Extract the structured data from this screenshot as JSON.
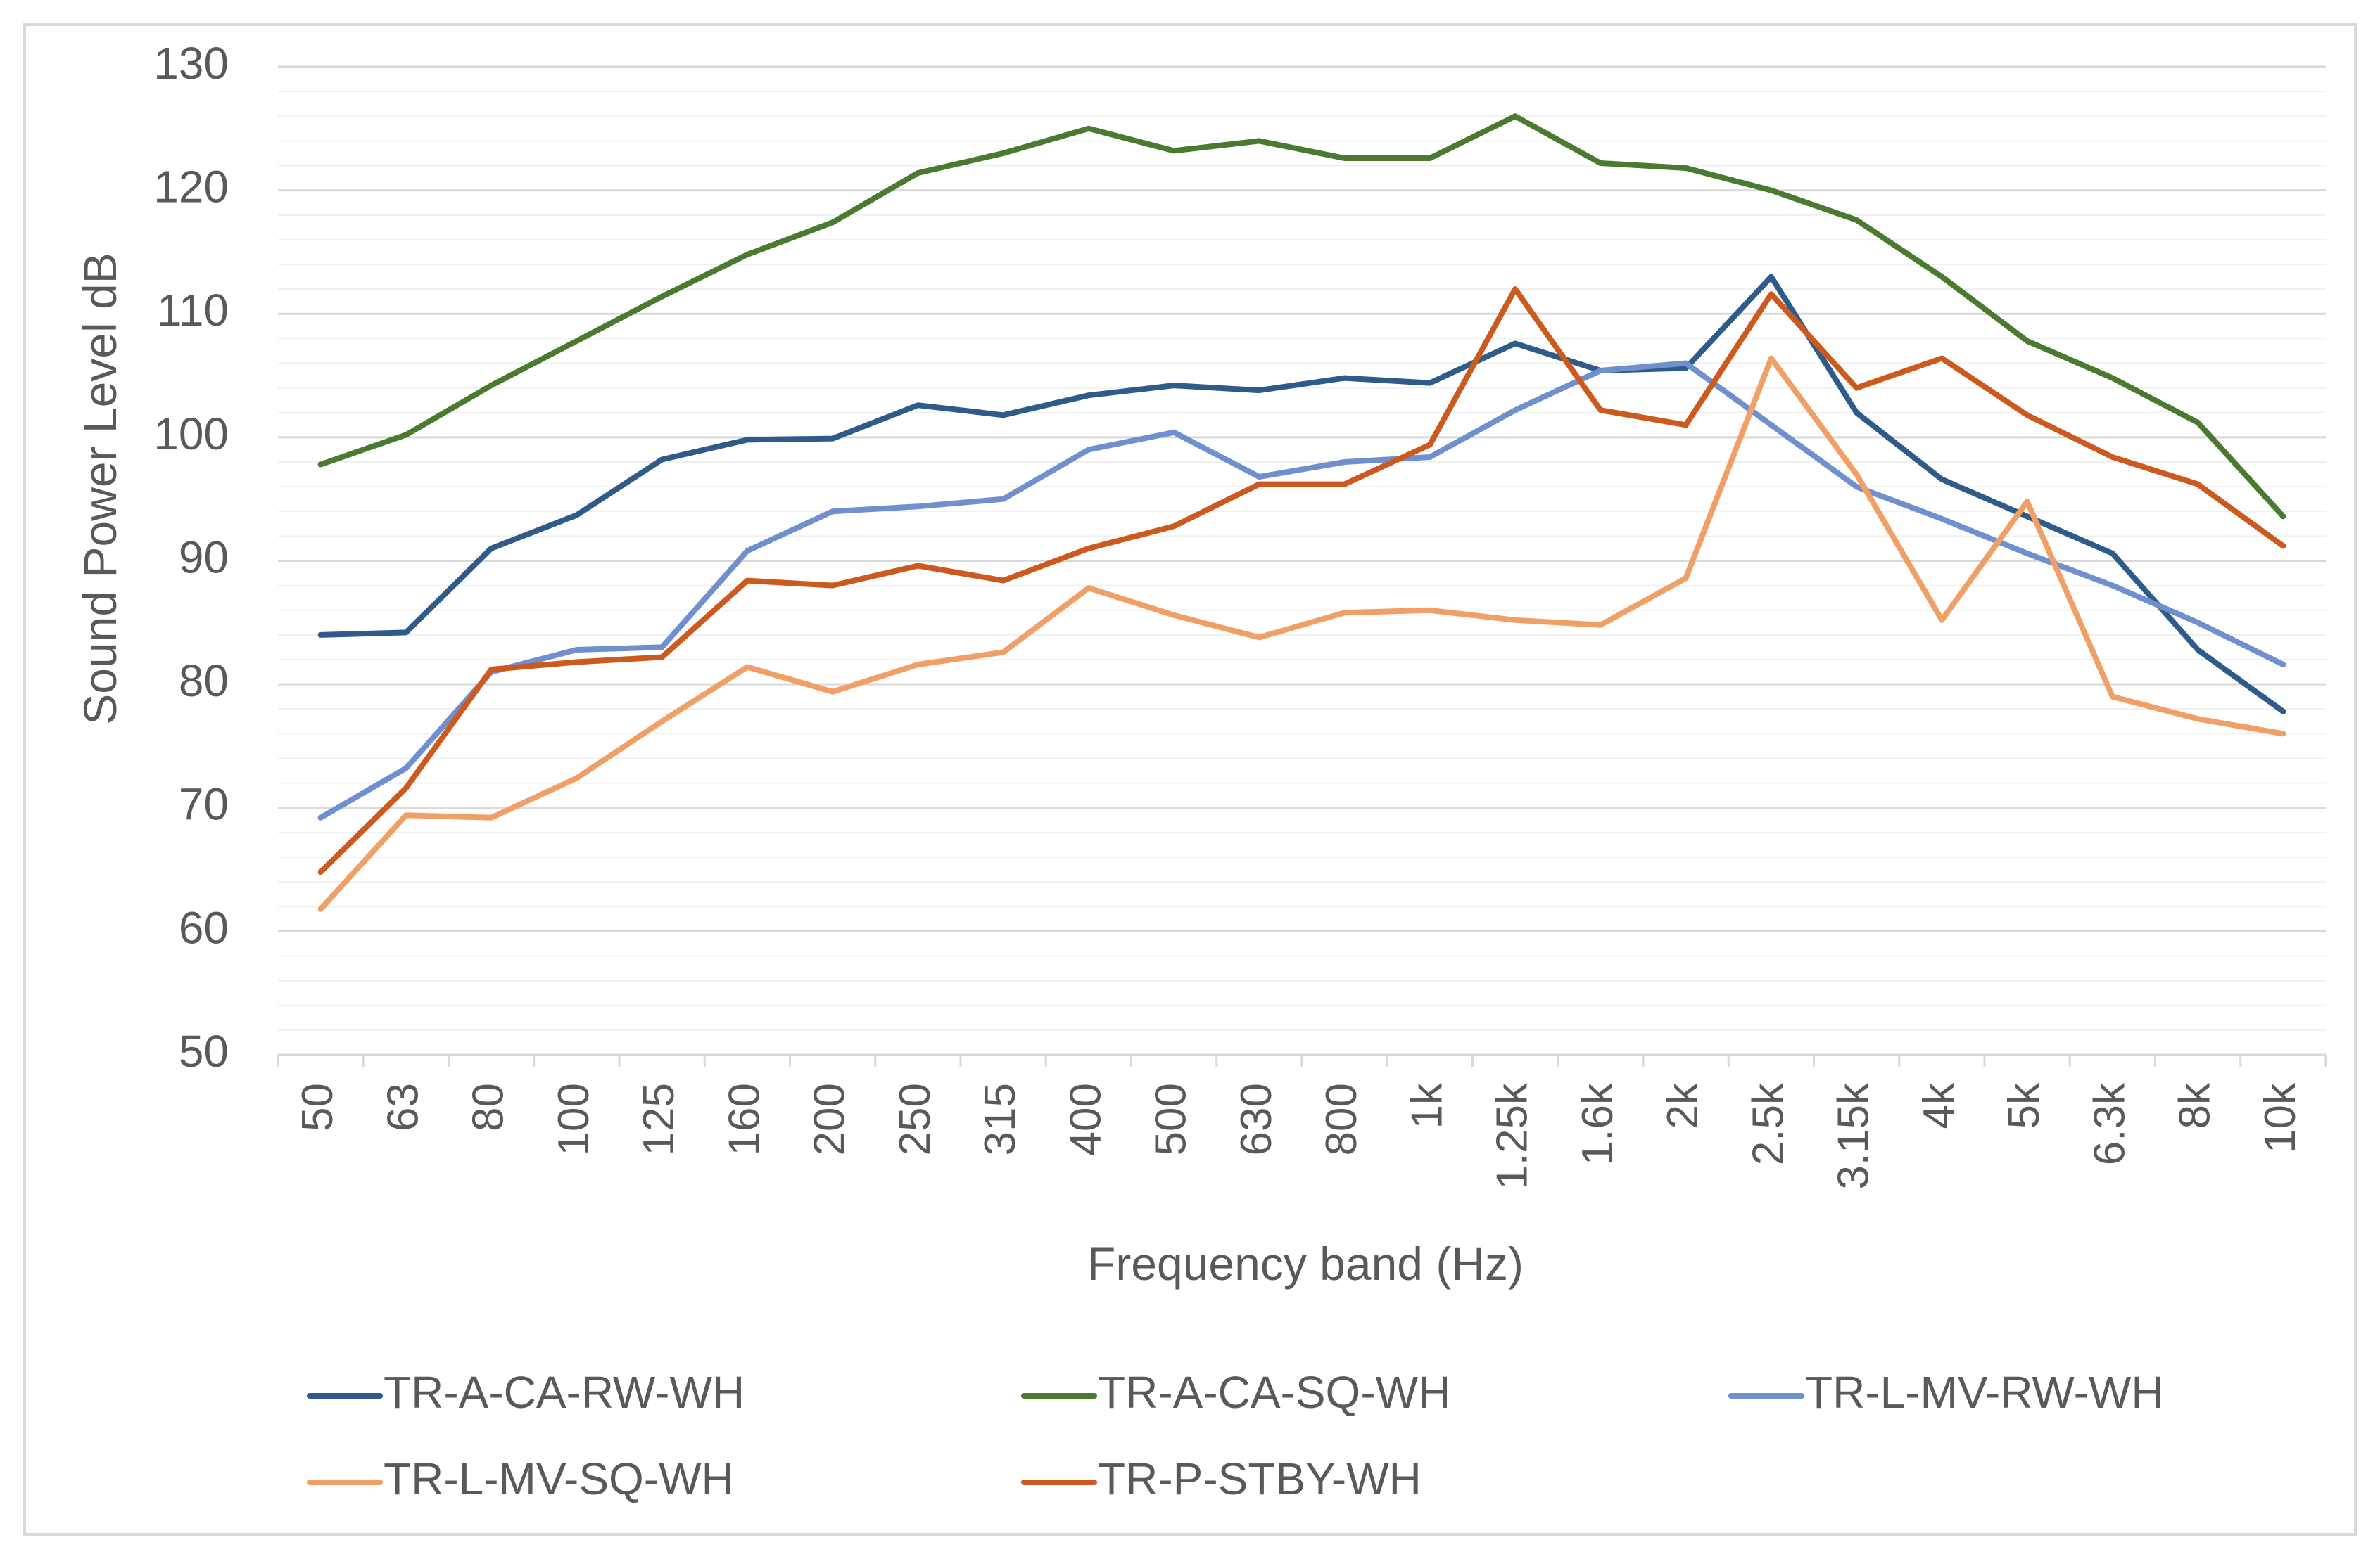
{
  "chart_data": {
    "type": "line",
    "title": "",
    "xlabel": "Frequency band (Hz)",
    "ylabel": "Sound Power Level dB",
    "ylim": [
      50,
      130
    ],
    "yticks": [
      50,
      60,
      70,
      80,
      90,
      100,
      110,
      120,
      130
    ],
    "grid": true,
    "legend_position": "bottom",
    "categories": [
      "50",
      "63",
      "80",
      "100",
      "125",
      "160",
      "200",
      "250",
      "315",
      "400",
      "500",
      "630",
      "800",
      "1k",
      "1.25k",
      "1.6k",
      "2k",
      "2.5k",
      "3.15k",
      "4k",
      "5k",
      "6.3k",
      "8k",
      "10k"
    ],
    "series": [
      {
        "name": "TR-A-CA-RW-WH",
        "color": "#2e5b8a",
        "values": [
          84,
          84.2,
          91,
          93.7,
          98.2,
          99.8,
          99.9,
          102.6,
          101.8,
          103.4,
          104.2,
          103.8,
          104.8,
          104.4,
          107.6,
          105.4,
          105.6,
          113,
          102,
          96.6,
          93.6,
          90.6,
          82.8,
          77.8
        ]
      },
      {
        "name": "TR-A-CA-SQ-WH",
        "color": "#4a7a2f",
        "values": [
          97.8,
          100.2,
          104.2,
          107.8,
          111.4,
          114.8,
          117.4,
          121.4,
          123,
          125,
          123.2,
          124,
          122.6,
          122.6,
          126,
          122.2,
          121.8,
          120,
          117.6,
          113,
          107.8,
          104.8,
          101.2,
          93.6
        ]
      },
      {
        "name": "TR-L-MV-RW-WH",
        "color": "#6f8fcf",
        "values": [
          69.2,
          73.2,
          81,
          82.8,
          83,
          90.8,
          94,
          94.4,
          95,
          99,
          100.4,
          96.8,
          98,
          98.4,
          102.2,
          105.4,
          106,
          101,
          96,
          93.4,
          90.6,
          88,
          85,
          81.6
        ]
      },
      {
        "name": "TR-L-MV-SQ-WH",
        "color": "#f0a066",
        "values": [
          61.8,
          69.4,
          69.2,
          72.4,
          77,
          81.4,
          79.4,
          81.6,
          82.6,
          87.8,
          85.6,
          83.8,
          85.8,
          86,
          85.2,
          84.8,
          88.6,
          106.4,
          97,
          85.2,
          94.8,
          79,
          77.2,
          76
        ]
      },
      {
        "name": "TR-P-STBY-WH",
        "color": "#cc5a1e",
        "values": [
          64.8,
          71.6,
          81.2,
          81.8,
          82.2,
          88.4,
          88,
          89.6,
          88.4,
          91,
          92.8,
          96.2,
          96.2,
          99.4,
          112,
          102.2,
          101,
          111.6,
          104,
          106.4,
          101.8,
          98.4,
          96.2,
          91.2
        ]
      }
    ]
  }
}
